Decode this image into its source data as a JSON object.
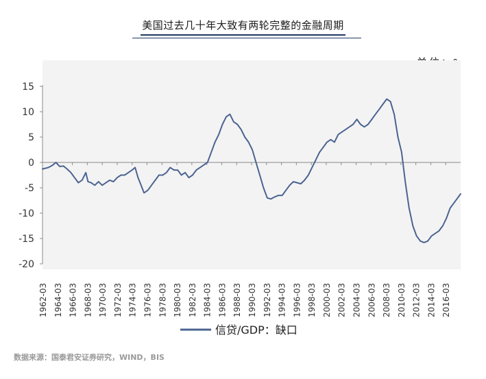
{
  "title": "美国过去几十年大致有两轮完整的金融周期",
  "unit_label": "单位：%",
  "source": "数据来源：国泰君安证券研究，WIND，BIS",
  "chart_data": {
    "type": "line",
    "x_ticks": [
      "1962-03",
      "1964-03",
      "1966-03",
      "1968-03",
      "1970-03",
      "1972-03",
      "1974-03",
      "1976-03",
      "1978-03",
      "1980-03",
      "1982-03",
      "1984-03",
      "1986-03",
      "1988-03",
      "1990-03",
      "1992-03",
      "1994-03",
      "1996-03",
      "1998-03",
      "2000-03",
      "2002-03",
      "2004-03",
      "2006-03",
      "2008-03",
      "2010-03",
      "2012-03",
      "2014-03",
      "2016-03"
    ],
    "y_ticks": [
      15,
      10,
      5,
      0,
      -5,
      -10,
      -15,
      -20
    ],
    "ylim": [
      -20,
      15
    ],
    "xlim": [
      1962.2,
      2018.2
    ],
    "grid": false,
    "legend_position": "bottom",
    "line_color": "#4a6391",
    "series": [
      {
        "name": "信贷/GDP：缺口",
        "x": [
          1962.2,
          1963.0,
          1963.6,
          1964.0,
          1964.5,
          1965.0,
          1965.5,
          1966.0,
          1966.5,
          1967.0,
          1967.5,
          1968.0,
          1968.3,
          1968.7,
          1969.2,
          1969.7,
          1970.2,
          1970.7,
          1971.2,
          1971.7,
          1972.2,
          1972.7,
          1973.2,
          1973.7,
          1974.2,
          1974.6,
          1975.0,
          1975.4,
          1975.8,
          1976.3,
          1976.8,
          1977.3,
          1977.8,
          1978.3,
          1978.8,
          1979.3,
          1979.8,
          1980.3,
          1980.8,
          1981.3,
          1981.8,
          1982.3,
          1982.8,
          1983.3,
          1983.8,
          1984.3,
          1984.8,
          1985.3,
          1985.8,
          1986.3,
          1986.8,
          1987.3,
          1987.8,
          1988.3,
          1988.8,
          1989.3,
          1989.8,
          1990.3,
          1990.8,
          1991.3,
          1991.8,
          1992.3,
          1992.8,
          1993.3,
          1993.8,
          1994.3,
          1994.8,
          1995.3,
          1995.8,
          1996.3,
          1996.8,
          1997.3,
          1997.8,
          1998.3,
          1998.8,
          1999.3,
          1999.8,
          2000.3,
          2000.8,
          2001.3,
          2001.8,
          2002.3,
          2002.8,
          2003.3,
          2003.8,
          2004.3,
          2004.8,
          2005.3,
          2005.8,
          2006.3,
          2006.8,
          2007.3,
          2007.8,
          2008.3,
          2008.8,
          2009.3,
          2009.8,
          2010.3,
          2010.8,
          2011.3,
          2011.8,
          2012.3,
          2012.8,
          2013.3,
          2013.8,
          2014.3,
          2014.8,
          2015.3,
          2015.8,
          2016.3,
          2016.8,
          2017.3,
          2017.8,
          2018.2
        ],
        "y": [
          -1.3,
          -1.0,
          -0.5,
          0.0,
          -0.8,
          -0.7,
          -1.3,
          -2.0,
          -3.0,
          -4.0,
          -3.5,
          -2.0,
          -3.8,
          -4.0,
          -4.5,
          -3.8,
          -4.5,
          -4.0,
          -3.5,
          -3.8,
          -3.0,
          -2.5,
          -2.5,
          -2.0,
          -1.5,
          -1.0,
          -3.0,
          -4.5,
          -6.0,
          -5.5,
          -4.5,
          -3.5,
          -2.5,
          -2.5,
          -2.0,
          -1.0,
          -1.5,
          -1.5,
          -2.5,
          -2.0,
          -3.0,
          -2.5,
          -1.5,
          -1.0,
          -0.5,
          0.0,
          2.0,
          4.0,
          5.5,
          7.5,
          9.0,
          9.5,
          8.0,
          7.5,
          6.5,
          5.0,
          4.0,
          2.5,
          0.0,
          -2.5,
          -5.0,
          -7.0,
          -7.2,
          -6.8,
          -6.5,
          -6.5,
          -5.5,
          -4.5,
          -3.8,
          -4.0,
          -4.2,
          -3.5,
          -2.5,
          -1.0,
          0.5,
          2.0,
          3.0,
          4.0,
          4.5,
          4.0,
          5.5,
          6.0,
          6.5,
          7.0,
          7.5,
          8.5,
          7.5,
          7.0,
          7.5,
          8.5,
          9.5,
          10.5,
          11.5,
          12.5,
          12.0,
          9.5,
          5.0,
          2.0,
          -4.0,
          -9.0,
          -12.5,
          -14.5,
          -15.5,
          -15.8,
          -15.5,
          -14.5,
          -14.0,
          -13.5,
          -12.5,
          -11.0,
          -9.0,
          -8.0,
          -7.0,
          -6.2
        ]
      }
    ]
  }
}
